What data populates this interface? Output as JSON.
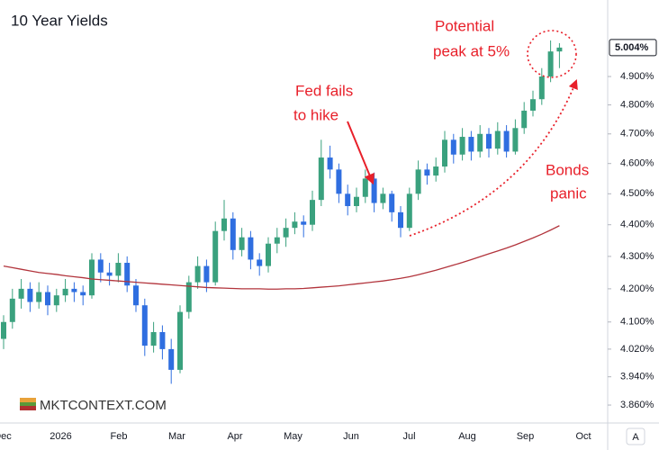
{
  "chart_data": {
    "type": "candlestick",
    "title": "10 Year Yields",
    "candles": [
      [
        4.05,
        4.12,
        4.02,
        4.1
      ],
      [
        4.1,
        4.2,
        4.08,
        4.17
      ],
      [
        4.17,
        4.23,
        4.14,
        4.2
      ],
      [
        4.2,
        4.22,
        4.13,
        4.16
      ],
      [
        4.16,
        4.22,
        4.14,
        4.19
      ],
      [
        4.19,
        4.21,
        4.12,
        4.15
      ],
      [
        4.15,
        4.2,
        4.13,
        4.18
      ],
      [
        4.18,
        4.23,
        4.16,
        4.2
      ],
      [
        4.2,
        4.22,
        4.16,
        4.19
      ],
      [
        4.19,
        4.21,
        4.15,
        4.18
      ],
      [
        4.18,
        4.31,
        4.17,
        4.29
      ],
      [
        4.29,
        4.31,
        4.22,
        4.25
      ],
      [
        4.25,
        4.28,
        4.21,
        4.24
      ],
      [
        4.24,
        4.31,
        4.22,
        4.28
      ],
      [
        4.28,
        4.3,
        4.19,
        4.21
      ],
      [
        4.21,
        4.23,
        4.13,
        4.15
      ],
      [
        4.15,
        4.17,
        4.0,
        4.03
      ],
      [
        4.03,
        4.1,
        4.01,
        4.07
      ],
      [
        4.07,
        4.09,
        3.99,
        4.02
      ],
      [
        4.02,
        4.05,
        3.92,
        3.96
      ],
      [
        3.96,
        4.15,
        3.95,
        4.13
      ],
      [
        4.13,
        4.24,
        4.11,
        4.22
      ],
      [
        4.22,
        4.3,
        4.2,
        4.27
      ],
      [
        4.27,
        4.29,
        4.19,
        4.22
      ],
      [
        4.22,
        4.41,
        4.21,
        4.38
      ],
      [
        4.38,
        4.48,
        4.35,
        4.42
      ],
      [
        4.42,
        4.44,
        4.29,
        4.32
      ],
      [
        4.32,
        4.39,
        4.3,
        4.36
      ],
      [
        4.36,
        4.38,
        4.26,
        4.29
      ],
      [
        4.29,
        4.31,
        4.24,
        4.27
      ],
      [
        4.27,
        4.36,
        4.25,
        4.34
      ],
      [
        4.34,
        4.39,
        4.31,
        4.36
      ],
      [
        4.36,
        4.42,
        4.33,
        4.39
      ],
      [
        4.39,
        4.44,
        4.37,
        4.41
      ],
      [
        4.41,
        4.43,
        4.36,
        4.4
      ],
      [
        4.4,
        4.51,
        4.38,
        4.48
      ],
      [
        4.48,
        4.68,
        4.46,
        4.62
      ],
      [
        4.62,
        4.66,
        4.55,
        4.58
      ],
      [
        4.58,
        4.6,
        4.47,
        4.5
      ],
      [
        4.5,
        4.53,
        4.43,
        4.46
      ],
      [
        4.46,
        4.52,
        4.44,
        4.49
      ],
      [
        4.49,
        4.58,
        4.47,
        4.55
      ],
      [
        4.55,
        4.57,
        4.44,
        4.47
      ],
      [
        4.47,
        4.52,
        4.45,
        4.5
      ],
      [
        4.5,
        4.51,
        4.41,
        4.44
      ],
      [
        4.44,
        4.46,
        4.36,
        4.39
      ],
      [
        4.39,
        4.52,
        4.38,
        4.5
      ],
      [
        4.5,
        4.61,
        4.48,
        4.58
      ],
      [
        4.58,
        4.6,
        4.53,
        4.56
      ],
      [
        4.56,
        4.62,
        4.54,
        4.59
      ],
      [
        4.59,
        4.71,
        4.57,
        4.68
      ],
      [
        4.68,
        4.7,
        4.6,
        4.63
      ],
      [
        4.63,
        4.72,
        4.61,
        4.69
      ],
      [
        4.69,
        4.71,
        4.61,
        4.64
      ],
      [
        4.64,
        4.73,
        4.62,
        4.7
      ],
      [
        4.7,
        4.72,
        4.62,
        4.65
      ],
      [
        4.65,
        4.74,
        4.63,
        4.71
      ],
      [
        4.71,
        4.73,
        4.62,
        4.64
      ],
      [
        4.64,
        4.75,
        4.63,
        4.72
      ],
      [
        4.72,
        4.81,
        4.7,
        4.78
      ],
      [
        4.78,
        4.85,
        4.76,
        4.82
      ],
      [
        4.82,
        4.93,
        4.8,
        4.9
      ],
      [
        4.9,
        5.03,
        4.88,
        4.99
      ],
      [
        4.99,
        5.02,
        4.93,
        5.004
      ]
    ],
    "up_color": "#3aa17e",
    "down_color": "#2f6ee0",
    "moving_average": {
      "color": "#b2343c",
      "values": [
        4.27,
        4.265,
        4.26,
        4.255,
        4.25,
        4.247,
        4.244,
        4.24,
        4.237,
        4.234,
        4.23,
        4.228,
        4.226,
        4.224,
        4.222,
        4.22,
        4.218,
        4.216,
        4.214,
        4.212,
        4.21,
        4.208,
        4.206,
        4.204,
        4.203,
        4.202,
        4.201,
        4.2,
        4.2,
        4.2,
        4.199,
        4.199,
        4.2,
        4.2,
        4.201,
        4.203,
        4.205,
        4.207,
        4.209,
        4.212,
        4.215,
        4.218,
        4.221,
        4.224,
        4.228,
        4.232,
        4.237,
        4.243,
        4.25,
        4.257,
        4.265,
        4.273,
        4.281,
        4.29,
        4.299,
        4.308,
        4.317,
        4.326,
        4.336,
        4.347,
        4.358,
        4.37,
        4.383,
        4.397
      ]
    },
    "log_scale": true,
    "grid": false,
    "ylim": [
      3.81,
      5.18
    ],
    "yticks": [
      {
        "value": 4.9,
        "label": "4.900%"
      },
      {
        "value": 4.8,
        "label": "4.800%"
      },
      {
        "value": 4.7,
        "label": "4.700%"
      },
      {
        "value": 4.6,
        "label": "4.600%"
      },
      {
        "value": 4.5,
        "label": "4.500%"
      },
      {
        "value": 4.4,
        "label": "4.400%"
      },
      {
        "value": 4.3,
        "label": "4.300%"
      },
      {
        "value": 4.2,
        "label": "4.200%"
      },
      {
        "value": 4.1,
        "label": "4.100%"
      },
      {
        "value": 4.02,
        "label": "4.020%"
      },
      {
        "value": 3.94,
        "label": "3.940%"
      },
      {
        "value": 3.86,
        "label": "3.860%"
      }
    ],
    "last_price": {
      "value": 5.004,
      "label": "5.004%"
    },
    "xtick_labels": [
      "Dec",
      "2026",
      "Feb",
      "Mar",
      "Apr",
      "May",
      "Jun",
      "Jul",
      "Aug",
      "Sep",
      "Oct"
    ],
    "annotations": [
      {
        "lines": [
          "Fed fails",
          "to hike"
        ]
      },
      {
        "lines": [
          "Potential",
          "peak at 5%"
        ]
      },
      {
        "lines": [
          "Bonds",
          "panic"
        ]
      }
    ],
    "watermark": "MKTCONTEXT.COM",
    "scale_button": "A"
  }
}
